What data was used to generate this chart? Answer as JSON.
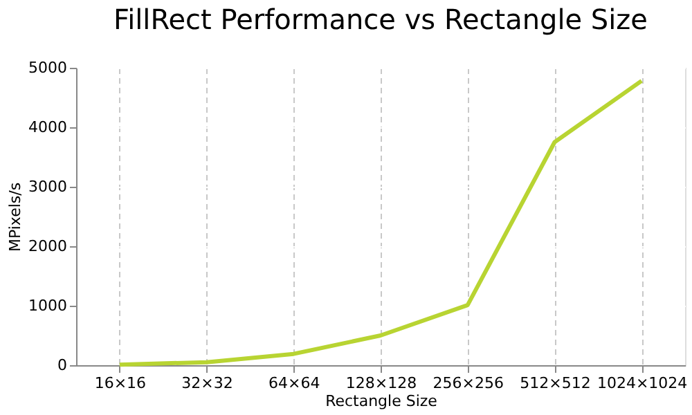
{
  "chart_data": {
    "type": "line",
    "title": "FillRect Performance vs Rectangle Size",
    "xlabel": "Rectangle Size",
    "ylabel": "MPixels/s",
    "categories": [
      "16×16",
      "32×32",
      "64×64",
      "128×128",
      "256×256",
      "512×512",
      "1024×1024"
    ],
    "series": [
      {
        "color": "#b8d432",
        "values": [
          10,
          50,
          190,
          500,
          1010,
          3750,
          4780
        ]
      }
    ],
    "ylim": [
      0,
      5000
    ],
    "yticks": [
      0,
      1000,
      2000,
      3000,
      4000,
      5000
    ],
    "grid": true,
    "marker": "none",
    "line_style": "solid"
  }
}
